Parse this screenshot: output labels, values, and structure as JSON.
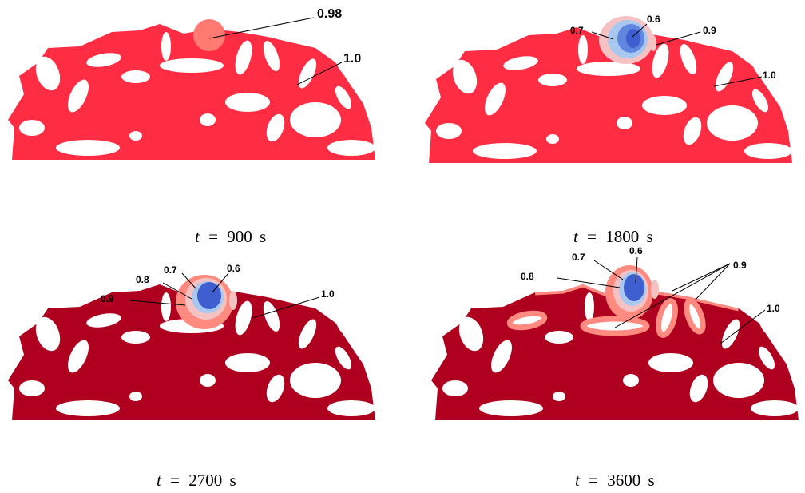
{
  "colors": {
    "value_1_0_early": "#ff2d43",
    "value_1_0_late": "#b00020",
    "value_0_98": "#ff7a70",
    "value_0_9": "#ff8a80",
    "value_0_8": "#f4c2c2",
    "value_0_7": "#a8c8f0",
    "value_0_6": "#3f5fd0",
    "background": "#ffffff"
  },
  "panels": [
    {
      "caption": {
        "var": "t",
        "eq": "=",
        "value": "900",
        "unit": "s"
      },
      "labels": [
        "0.98",
        "1.0"
      ]
    },
    {
      "caption": {
        "var": "t",
        "eq": "=",
        "value": "1800",
        "unit": "s"
      },
      "labels": [
        "0.7",
        "0.6",
        "0.9",
        "1.0"
      ]
    },
    {
      "caption": {
        "var": "t",
        "eq": "=",
        "value": "2700",
        "unit": "s"
      },
      "labels": [
        "0.7",
        "0.6",
        "0.8",
        "0.9",
        "1.0"
      ]
    },
    {
      "caption": {
        "var": "t",
        "eq": "=",
        "value": "3600",
        "unit": "s"
      },
      "labels": [
        "0.7",
        "0.6",
        "0.8",
        "0.9",
        "1.0"
      ]
    }
  ]
}
